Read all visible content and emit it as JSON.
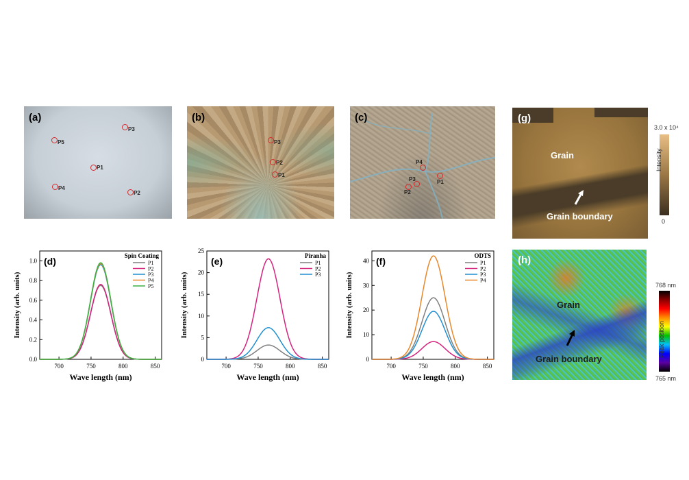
{
  "micrographs": [
    {
      "label": "(a)",
      "points": [
        "P1",
        "P2",
        "P3",
        "P4",
        "P5"
      ]
    },
    {
      "label": "(b)",
      "points": [
        "P1",
        "P2",
        "P3"
      ]
    },
    {
      "label": "(c)",
      "points": [
        "P1",
        "P2",
        "P3",
        "P4"
      ]
    }
  ],
  "map_g": {
    "label": "(g)",
    "grain": "Grain",
    "boundary": "Grain boundary",
    "colorbar_max": "3.0 x 10⁴",
    "colorbar_min": "0",
    "colorbar_title": "Intensity"
  },
  "map_h": {
    "label": "(h)",
    "grain": "Grain",
    "boundary": "Grain boundary",
    "colorbar_max": "768 nm",
    "colorbar_min": "765 nm",
    "colorbar_title": "Peak position"
  },
  "chart_data": [
    {
      "type": "line",
      "label": "(d)",
      "legend_title": "Spin Coating",
      "xlabel": "Wave length (nm)",
      "ylabel": "Intensity (arb. units)",
      "xlim": [
        670,
        860
      ],
      "ylim": [
        0,
        1.1
      ],
      "xticks": [
        700,
        750,
        800,
        850
      ],
      "yticks": [
        0.0,
        0.2,
        0.4,
        0.6,
        0.8,
        1.0
      ],
      "ytick_labels": [
        "0.0",
        "0.2",
        "0.4",
        "0.6",
        "0.8",
        "1.0"
      ],
      "peak_center": 765,
      "peak_width": 16,
      "series": [
        {
          "name": "P1",
          "color": "#7f7f7f",
          "peak": 0.75
        },
        {
          "name": "P2",
          "color": "#d4237d",
          "peak": 0.76
        },
        {
          "name": "P3",
          "color": "#1f8fd0",
          "peak": 0.96
        },
        {
          "name": "P4",
          "color": "#e8872a",
          "peak": 0.97
        },
        {
          "name": "P5",
          "color": "#3cb043",
          "peak": 0.98
        }
      ]
    },
    {
      "type": "line",
      "label": "(e)",
      "legend_title": "Piranha",
      "xlabel": "Wave length (nm)",
      "ylabel": "Intensity (arb. units)",
      "xlim": [
        670,
        860
      ],
      "ylim": [
        0,
        25
      ],
      "xticks": [
        700,
        750,
        800,
        850
      ],
      "yticks": [
        0,
        5,
        10,
        15,
        20,
        25
      ],
      "ytick_labels": [
        "0",
        "5",
        "10",
        "15",
        "20",
        "25"
      ],
      "peak_center": 766,
      "peak_width": 18,
      "series": [
        {
          "name": "P1",
          "color": "#7f7f7f",
          "peak": 3.3
        },
        {
          "name": "P2",
          "color": "#d4237d",
          "peak": 23.2
        },
        {
          "name": "P3",
          "color": "#1f8fd0",
          "peak": 7.3
        }
      ]
    },
    {
      "type": "line",
      "label": "(f)",
      "legend_title": "ODTS",
      "xlabel": "Wave length (nm)",
      "ylabel": "Intensity (arb. units)",
      "xlim": [
        670,
        860
      ],
      "ylim": [
        0,
        44
      ],
      "xticks": [
        700,
        750,
        800,
        850
      ],
      "yticks": [
        0,
        10,
        20,
        30,
        40
      ],
      "ytick_labels": [
        "0",
        "10",
        "20",
        "30",
        "40"
      ],
      "peak_center": 766,
      "peak_width": 18,
      "series": [
        {
          "name": "P1",
          "color": "#7f7f7f",
          "peak": 25.0
        },
        {
          "name": "P2",
          "color": "#d4237d",
          "peak": 7.2
        },
        {
          "name": "P3",
          "color": "#1f8fd0",
          "peak": 19.5
        },
        {
          "name": "P4",
          "color": "#e8872a",
          "peak": 42.0
        }
      ]
    }
  ]
}
